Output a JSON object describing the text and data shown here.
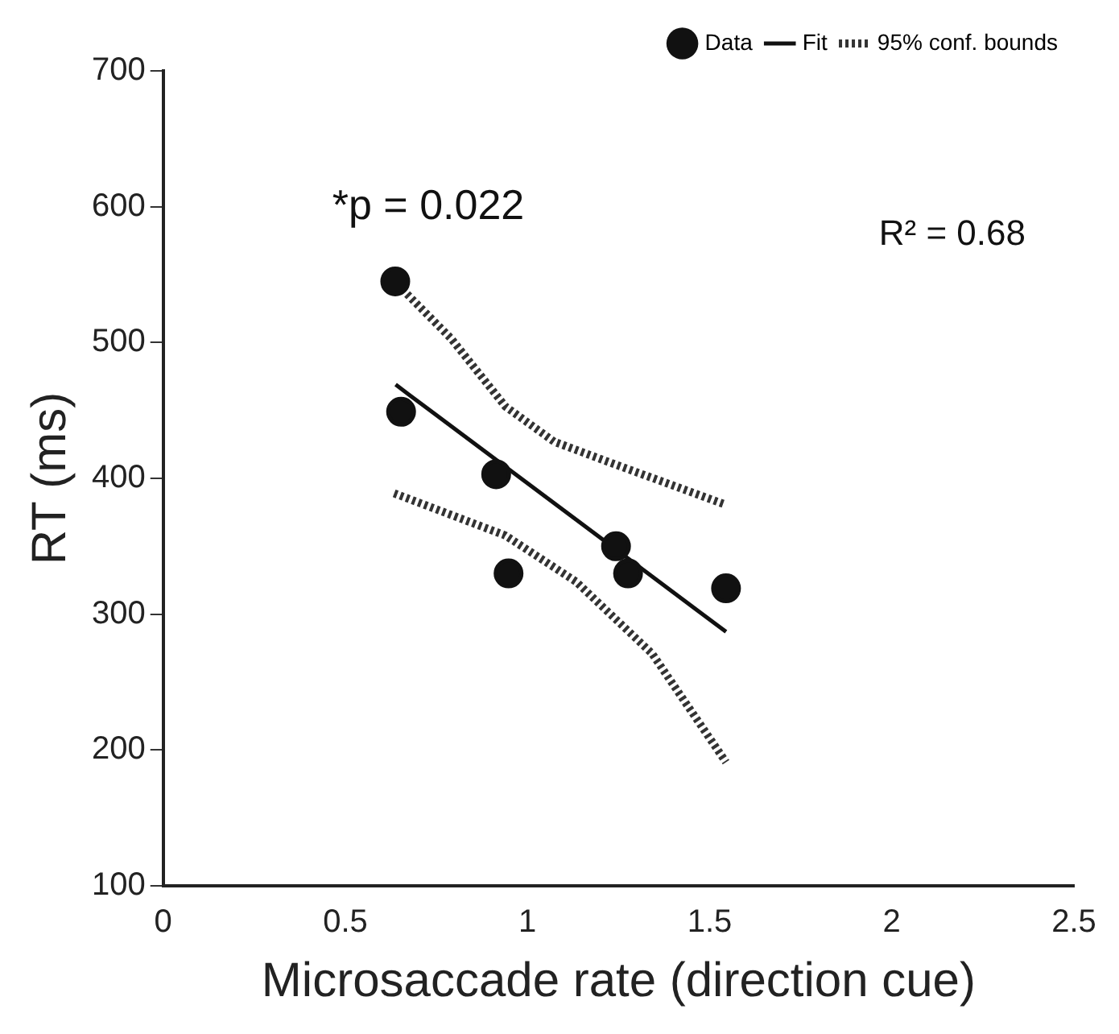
{
  "chart_data": {
    "type": "scatter",
    "xlabel": "Microsaccade rate (direction cue)",
    "ylabel": "RT (ms)",
    "xlim": [
      0,
      2.5
    ],
    "xticks": [
      0,
      0.5,
      1,
      1.5,
      2,
      2.5
    ],
    "ylim": [
      100,
      700
    ],
    "yticks": [
      100,
      200,
      300,
      400,
      500,
      600,
      700
    ],
    "grid": false,
    "legend": "top right",
    "annotations": [
      "*p = 0.022",
      "R² = 0.68"
    ],
    "series": [
      {
        "type": "scatter",
        "name": "Data",
        "color": "#111111",
        "marker": "circle",
        "x": [
          0.637,
          0.653,
          0.914,
          0.948,
          1.243,
          1.276,
          1.545
        ],
        "values": [
          545,
          449,
          403,
          330,
          350,
          330,
          319
        ]
      },
      {
        "type": "line",
        "name": "Fit",
        "color": "#111111",
        "marker": "none",
        "line_style": "solid",
        "x": [
          0.638,
          1.545
        ],
        "values": [
          469,
          287
        ]
      },
      {
        "type": "line",
        "name": "95% conf. bounds",
        "color": "#333333",
        "marker": "none",
        "line_style": "dotted",
        "x": [
          0.657,
          0.79,
          0.939,
          1.073,
          1.223,
          1.54
        ],
        "values": [
          539,
          503,
          453,
          427,
          412,
          381
        ]
      },
      {
        "type": "line",
        "color": "#333333",
        "marker": "none",
        "line_style": "dotted",
        "x": [
          0.634,
          0.939,
          1.133,
          1.342,
          1.545
        ],
        "values": [
          389,
          358,
          324,
          271,
          191
        ]
      }
    ]
  }
}
